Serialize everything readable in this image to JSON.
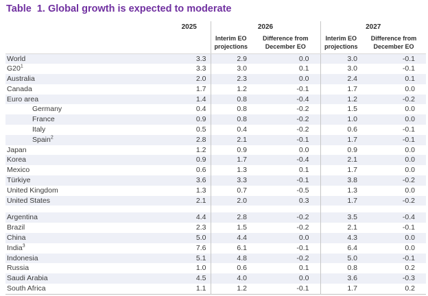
{
  "title": "Table  1. Global growth is expected to moderate",
  "table": {
    "header": {
      "y2025": "2025",
      "y2026": "2026",
      "y2027": "2027",
      "interim": "Interim EO projections",
      "diff": "Difference from December EO"
    },
    "rows": [
      {
        "label": "World",
        "sup": "",
        "indent": false,
        "group": 1,
        "values": [
          "3.3",
          "2.9",
          "0.0",
          "3.0",
          "-0.1"
        ]
      },
      {
        "label": "G20",
        "sup": "1",
        "indent": false,
        "group": 1,
        "values": [
          "3.3",
          "3.0",
          "0.1",
          "3.0",
          "-0.1"
        ]
      },
      {
        "label": "Australia",
        "sup": "",
        "indent": false,
        "group": 1,
        "values": [
          "2.0",
          "2.3",
          "0.0",
          "2.4",
          "0.1"
        ]
      },
      {
        "label": "Canada",
        "sup": "",
        "indent": false,
        "group": 1,
        "values": [
          "1.7",
          "1.2",
          "-0.1",
          "1.7",
          "0.0"
        ]
      },
      {
        "label": "Euro area",
        "sup": "",
        "indent": false,
        "group": 1,
        "values": [
          "1.4",
          "0.8",
          "-0.4",
          "1.2",
          "-0.2"
        ]
      },
      {
        "label": "Germany",
        "sup": "",
        "indent": true,
        "group": 1,
        "values": [
          "0.4",
          "0.8",
          "-0.2",
          "1.5",
          "0.0"
        ]
      },
      {
        "label": "France",
        "sup": "",
        "indent": true,
        "group": 1,
        "values": [
          "0.9",
          "0.8",
          "-0.2",
          "1.0",
          "0.0"
        ]
      },
      {
        "label": "Italy",
        "sup": "",
        "indent": true,
        "group": 1,
        "values": [
          "0.5",
          "0.4",
          "-0.2",
          "0.6",
          "-0.1"
        ]
      },
      {
        "label": "Spain",
        "sup": "2",
        "indent": true,
        "group": 1,
        "values": [
          "2.8",
          "2.1",
          "-0.1",
          "1.7",
          "-0.1"
        ]
      },
      {
        "label": "Japan",
        "sup": "",
        "indent": false,
        "group": 1,
        "values": [
          "1.2",
          "0.9",
          "0.0",
          "0.9",
          "0.0"
        ]
      },
      {
        "label": "Korea",
        "sup": "",
        "indent": false,
        "group": 1,
        "values": [
          "0.9",
          "1.7",
          "-0.4",
          "2.1",
          "0.0"
        ]
      },
      {
        "label": "Mexico",
        "sup": "",
        "indent": false,
        "group": 1,
        "values": [
          "0.6",
          "1.3",
          "0.1",
          "1.7",
          "0.0"
        ]
      },
      {
        "label": "Türkiye",
        "sup": "",
        "indent": false,
        "group": 1,
        "values": [
          "3.6",
          "3.3",
          "-0.1",
          "3.8",
          "-0.2"
        ]
      },
      {
        "label": "United Kingdom",
        "sup": "",
        "indent": false,
        "group": 1,
        "values": [
          "1.3",
          "0.7",
          "-0.5",
          "1.3",
          "0.0"
        ]
      },
      {
        "label": "United States",
        "sup": "",
        "indent": false,
        "group": 1,
        "values": [
          "2.1",
          "2.0",
          "0.3",
          "1.7",
          "-0.2"
        ]
      },
      {
        "label": "Argentina",
        "sup": "",
        "indent": false,
        "group": 2,
        "values": [
          "4.4",
          "2.8",
          "-0.2",
          "3.5",
          "-0.4"
        ]
      },
      {
        "label": "Brazil",
        "sup": "",
        "indent": false,
        "group": 2,
        "values": [
          "2.3",
          "1.5",
          "-0.2",
          "2.1",
          "-0.1"
        ]
      },
      {
        "label": "China",
        "sup": "",
        "indent": false,
        "group": 2,
        "values": [
          "5.0",
          "4.4",
          "0.0",
          "4.3",
          "0.0"
        ]
      },
      {
        "label": "India",
        "sup": "3",
        "indent": false,
        "group": 2,
        "values": [
          "7.6",
          "6.1",
          "-0.1",
          "6.4",
          "0.0"
        ]
      },
      {
        "label": "Indonesia",
        "sup": "",
        "indent": false,
        "group": 2,
        "values": [
          "5.1",
          "4.8",
          "-0.2",
          "5.0",
          "-0.1"
        ]
      },
      {
        "label": "Russia",
        "sup": "",
        "indent": false,
        "group": 2,
        "values": [
          "1.0",
          "0.6",
          "0.1",
          "0.8",
          "0.2"
        ]
      },
      {
        "label": "Saudi Arabia",
        "sup": "",
        "indent": false,
        "group": 2,
        "values": [
          "4.5",
          "4.0",
          "0.0",
          "3.6",
          "-0.3"
        ]
      },
      {
        "label": "South Africa",
        "sup": "",
        "indent": false,
        "group": 2,
        "values": [
          "1.1",
          "1.2",
          "-0.1",
          "1.7",
          "0.2"
        ]
      }
    ]
  },
  "colors": {
    "title": "#7030A0",
    "stripe": "#eef0f7",
    "rule": "#c6c6c6",
    "text": "#3a3a3a"
  }
}
